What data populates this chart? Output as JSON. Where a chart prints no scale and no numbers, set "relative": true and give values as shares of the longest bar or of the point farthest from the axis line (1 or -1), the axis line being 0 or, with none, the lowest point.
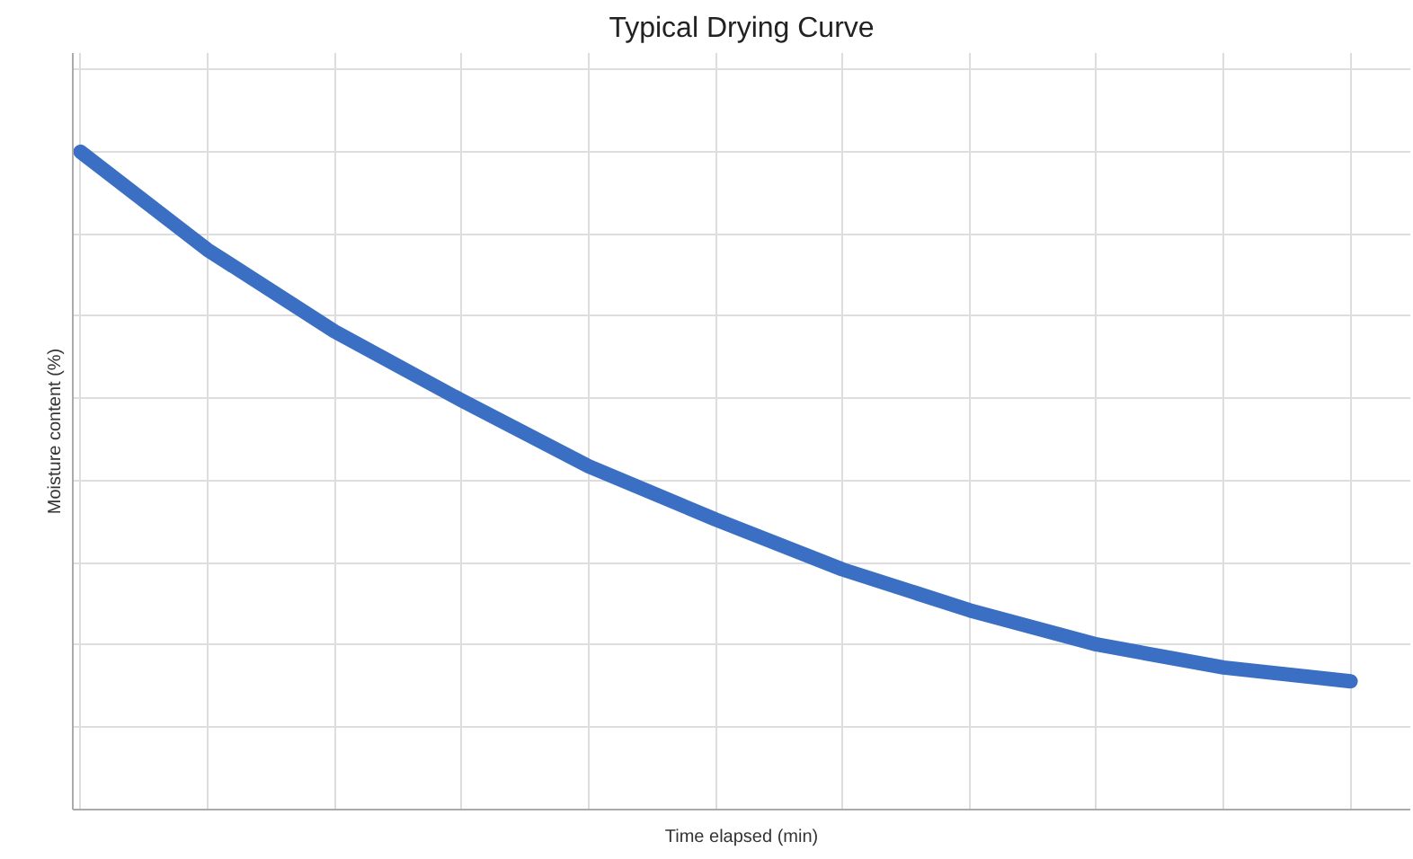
{
  "chart_data": {
    "type": "line",
    "title": "Typical Drying Curve",
    "xlabel": "Time elapsed (min)",
    "ylabel": "Moisture content (%)",
    "relative": true,
    "categories": [
      null,
      null,
      null,
      null,
      null,
      null,
      null,
      null,
      null,
      null,
      null
    ],
    "series": [
      {
        "color": "#3a6fc4",
        "values": [
          1,
          0.851,
          0.727,
          0.622,
          0.522,
          0.441,
          0.365,
          0.303,
          0.251,
          0.216,
          0.195
        ]
      }
    ],
    "grid": true,
    "marker": "none",
    "line_style": "solid"
  }
}
